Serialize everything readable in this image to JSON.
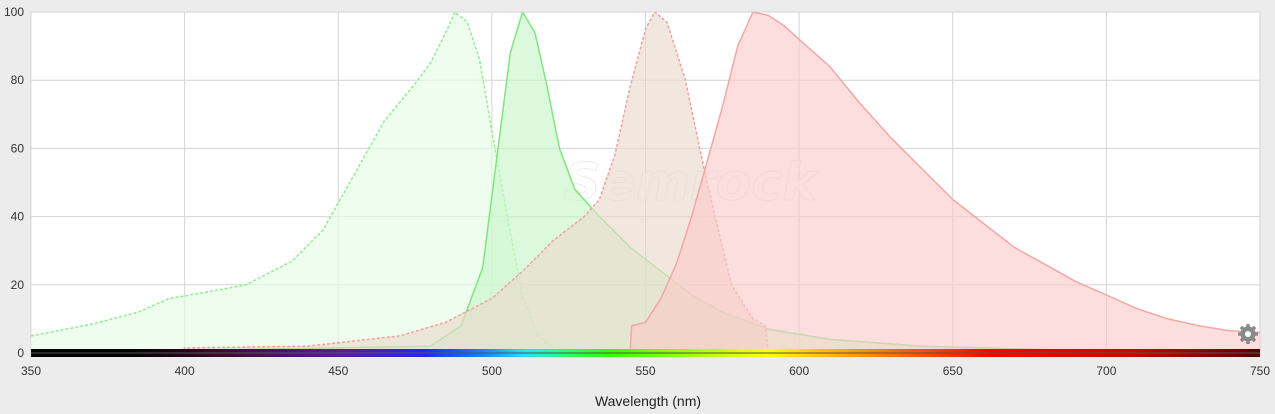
{
  "chart_data": {
    "type": "area",
    "xlabel": "Wavelength (nm)",
    "ylabel": "",
    "xlim": [
      350,
      750
    ],
    "ylim": [
      0,
      100
    ],
    "x_ticks": [
      "350",
      "400",
      "450",
      "500",
      "550",
      "600",
      "650",
      "700",
      "750"
    ],
    "y_ticks": [
      "0",
      "20",
      "40",
      "60",
      "80",
      "100"
    ],
    "grid": true,
    "legend": "none",
    "watermark": "Semrock",
    "series": [
      {
        "kind": "excitation",
        "color": "#90ee90",
        "fill": "#e3fbe3",
        "line_style": "dashed",
        "points": [
          [
            350,
            5
          ],
          [
            370,
            8.5
          ],
          [
            385,
            12
          ],
          [
            395,
            16
          ],
          [
            405,
            17.5
          ],
          [
            420,
            20
          ],
          [
            435,
            27
          ],
          [
            445,
            36
          ],
          [
            455,
            52
          ],
          [
            465,
            68
          ],
          [
            475,
            79
          ],
          [
            480,
            85
          ],
          [
            485,
            94
          ],
          [
            488,
            100
          ],
          [
            492,
            97
          ],
          [
            496,
            86
          ],
          [
            500,
            65
          ],
          [
            505,
            40
          ],
          [
            510,
            17
          ],
          [
            515,
            5
          ],
          [
            520,
            1.5
          ],
          [
            530,
            0.5
          ],
          [
            560,
            0
          ],
          [
            750,
            0
          ]
        ]
      },
      {
        "kind": "emission",
        "color": "#7fe67f",
        "fill": "#c8f5c8",
        "line_style": "solid",
        "points": [
          [
            350,
            0
          ],
          [
            480,
            2
          ],
          [
            490,
            8
          ],
          [
            497,
            25
          ],
          [
            502,
            60
          ],
          [
            506,
            88
          ],
          [
            510,
            100
          ],
          [
            514,
            94
          ],
          [
            518,
            78
          ],
          [
            522,
            60
          ],
          [
            527,
            48
          ],
          [
            535,
            40
          ],
          [
            545,
            31
          ],
          [
            555,
            24
          ],
          [
            565,
            17
          ],
          [
            575,
            12
          ],
          [
            590,
            7
          ],
          [
            610,
            4
          ],
          [
            640,
            2
          ],
          [
            680,
            1
          ],
          [
            750,
            0.5
          ]
        ]
      },
      {
        "kind": "excitation",
        "color": "#f0a0a0",
        "fill": "#ead9c9",
        "line_style": "dashed",
        "points": [
          [
            350,
            0
          ],
          [
            399.5,
            0
          ],
          [
            400,
            1.5
          ],
          [
            440,
            2
          ],
          [
            470,
            5
          ],
          [
            485,
            9
          ],
          [
            500,
            16
          ],
          [
            510,
            24
          ],
          [
            520,
            33
          ],
          [
            530,
            40
          ],
          [
            535,
            45
          ],
          [
            540,
            58
          ],
          [
            545,
            78
          ],
          [
            550,
            95
          ],
          [
            553,
            100
          ],
          [
            557,
            97
          ],
          [
            563,
            80
          ],
          [
            570,
            50
          ],
          [
            578,
            20
          ],
          [
            585,
            10
          ],
          [
            589,
            8
          ],
          [
            590,
            0
          ],
          [
            750,
            0
          ]
        ]
      },
      {
        "kind": "emission",
        "color": "#f4a6a6",
        "fill": "#fccaca",
        "line_style": "solid",
        "points": [
          [
            350,
            0
          ],
          [
            545,
            0
          ],
          [
            545.5,
            8
          ],
          [
            550,
            9
          ],
          [
            555,
            16
          ],
          [
            560,
            26
          ],
          [
            565,
            40
          ],
          [
            570,
            56
          ],
          [
            575,
            72
          ],
          [
            580,
            90
          ],
          [
            585,
            100
          ],
          [
            590,
            99
          ],
          [
            595,
            96
          ],
          [
            600,
            92
          ],
          [
            610,
            84
          ],
          [
            620,
            73
          ],
          [
            630,
            63
          ],
          [
            640,
            54
          ],
          [
            650,
            45
          ],
          [
            660,
            38
          ],
          [
            670,
            31
          ],
          [
            680,
            26
          ],
          [
            690,
            21
          ],
          [
            700,
            17
          ],
          [
            710,
            13
          ],
          [
            720,
            10
          ],
          [
            730,
            8
          ],
          [
            740,
            6.5
          ],
          [
            750,
            6
          ]
        ]
      }
    ],
    "colors": {
      "background": "#ececec",
      "plot_background": "#ffffff",
      "grid": "#d4d4d4",
      "axis_line": "#555555"
    },
    "icons": [
      "gear-icon"
    ]
  }
}
